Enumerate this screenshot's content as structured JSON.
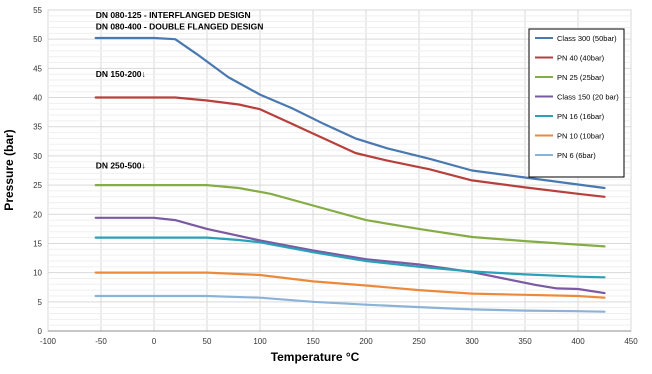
{
  "chart_data": {
    "type": "line",
    "title": "",
    "xlabel": "Temperature °C",
    "ylabel": "Pressure (bar)",
    "xlim": [
      -100,
      450
    ],
    "ylim": [
      0,
      55
    ],
    "xticks": [
      -100,
      -50,
      0,
      50,
      100,
      150,
      200,
      250,
      300,
      350,
      400,
      450
    ],
    "yticks": [
      0,
      5,
      10,
      15,
      20,
      25,
      30,
      35,
      40,
      45,
      50,
      55
    ],
    "grid": true,
    "legend_position": "top-right",
    "annotations": [
      {
        "text": "DN 080-125 -  INTERFLANGED DESIGN",
        "x": -55,
        "y": 53.6
      },
      {
        "text": "DN 080-400 -  DOUBLE FLANGED DESIGN",
        "x": -55,
        "y": 51.7
      },
      {
        "text": "DN 150-200↓",
        "x": -55,
        "y": 43.5
      },
      {
        "text": "DN 250-500↓",
        "x": -55,
        "y": 27.8
      }
    ],
    "series": [
      {
        "name": "Class 300 (50bar)",
        "color": "#4a78b0",
        "points": [
          [
            -55,
            50.2
          ],
          [
            0,
            50.2
          ],
          [
            20,
            50
          ],
          [
            40,
            47.5
          ],
          [
            70,
            43.5
          ],
          [
            100,
            40.5
          ],
          [
            130,
            38.2
          ],
          [
            160,
            35.5
          ],
          [
            190,
            33
          ],
          [
            220,
            31.3
          ],
          [
            260,
            29.5
          ],
          [
            300,
            27.5
          ],
          [
            350,
            26.3
          ],
          [
            400,
            25.1
          ],
          [
            425,
            24.5
          ]
        ]
      },
      {
        "name": "PN 40 (40bar)",
        "color": "#b8403c",
        "points": [
          [
            -55,
            40
          ],
          [
            20,
            40
          ],
          [
            50,
            39.5
          ],
          [
            80,
            38.8
          ],
          [
            100,
            38
          ],
          [
            130,
            35.5
          ],
          [
            160,
            33
          ],
          [
            190,
            30.5
          ],
          [
            220,
            29.2
          ],
          [
            260,
            27.7
          ],
          [
            300,
            25.8
          ],
          [
            350,
            24.6
          ],
          [
            400,
            23.5
          ],
          [
            425,
            23
          ]
        ]
      },
      {
        "name": "PN 25 (25bar)",
        "color": "#86ac46",
        "points": [
          [
            -55,
            25
          ],
          [
            50,
            25
          ],
          [
            80,
            24.5
          ],
          [
            110,
            23.5
          ],
          [
            150,
            21.5
          ],
          [
            200,
            19
          ],
          [
            250,
            17.5
          ],
          [
            300,
            16.1
          ],
          [
            350,
            15.4
          ],
          [
            400,
            14.8
          ],
          [
            425,
            14.5
          ]
        ]
      },
      {
        "name": "Class 150 (20 bar)",
        "color": "#7a5aa2",
        "points": [
          [
            -55,
            19.4
          ],
          [
            0,
            19.4
          ],
          [
            20,
            19
          ],
          [
            50,
            17.5
          ],
          [
            100,
            15.5
          ],
          [
            150,
            13.8
          ],
          [
            200,
            12.3
          ],
          [
            250,
            11.4
          ],
          [
            300,
            10.1
          ],
          [
            330,
            9
          ],
          [
            360,
            7.9
          ],
          [
            380,
            7.3
          ],
          [
            400,
            7.2
          ],
          [
            425,
            6.5
          ]
        ]
      },
      {
        "name": "PN 16 (16bar)",
        "color": "#2aa1b8",
        "points": [
          [
            -55,
            16
          ],
          [
            50,
            16
          ],
          [
            80,
            15.6
          ],
          [
            100,
            15.2
          ],
          [
            150,
            13.5
          ],
          [
            200,
            12
          ],
          [
            250,
            11
          ],
          [
            300,
            10.2
          ],
          [
            350,
            9.7
          ],
          [
            400,
            9.3
          ],
          [
            425,
            9.2
          ]
        ]
      },
      {
        "name": "PN 10 (10bar)",
        "color": "#ec8a3b",
        "points": [
          [
            -55,
            10
          ],
          [
            50,
            10
          ],
          [
            100,
            9.6
          ],
          [
            150,
            8.5
          ],
          [
            200,
            7.8
          ],
          [
            250,
            7
          ],
          [
            300,
            6.4
          ],
          [
            350,
            6.2
          ],
          [
            400,
            6
          ],
          [
            425,
            5.7
          ]
        ]
      },
      {
        "name": "PN 6 (6bar)",
        "color": "#8db2d8",
        "points": [
          [
            -55,
            6
          ],
          [
            50,
            6
          ],
          [
            100,
            5.7
          ],
          [
            150,
            5
          ],
          [
            200,
            4.5
          ],
          [
            250,
            4.1
          ],
          [
            300,
            3.7
          ],
          [
            350,
            3.5
          ],
          [
            400,
            3.4
          ],
          [
            425,
            3.3
          ]
        ]
      }
    ]
  }
}
